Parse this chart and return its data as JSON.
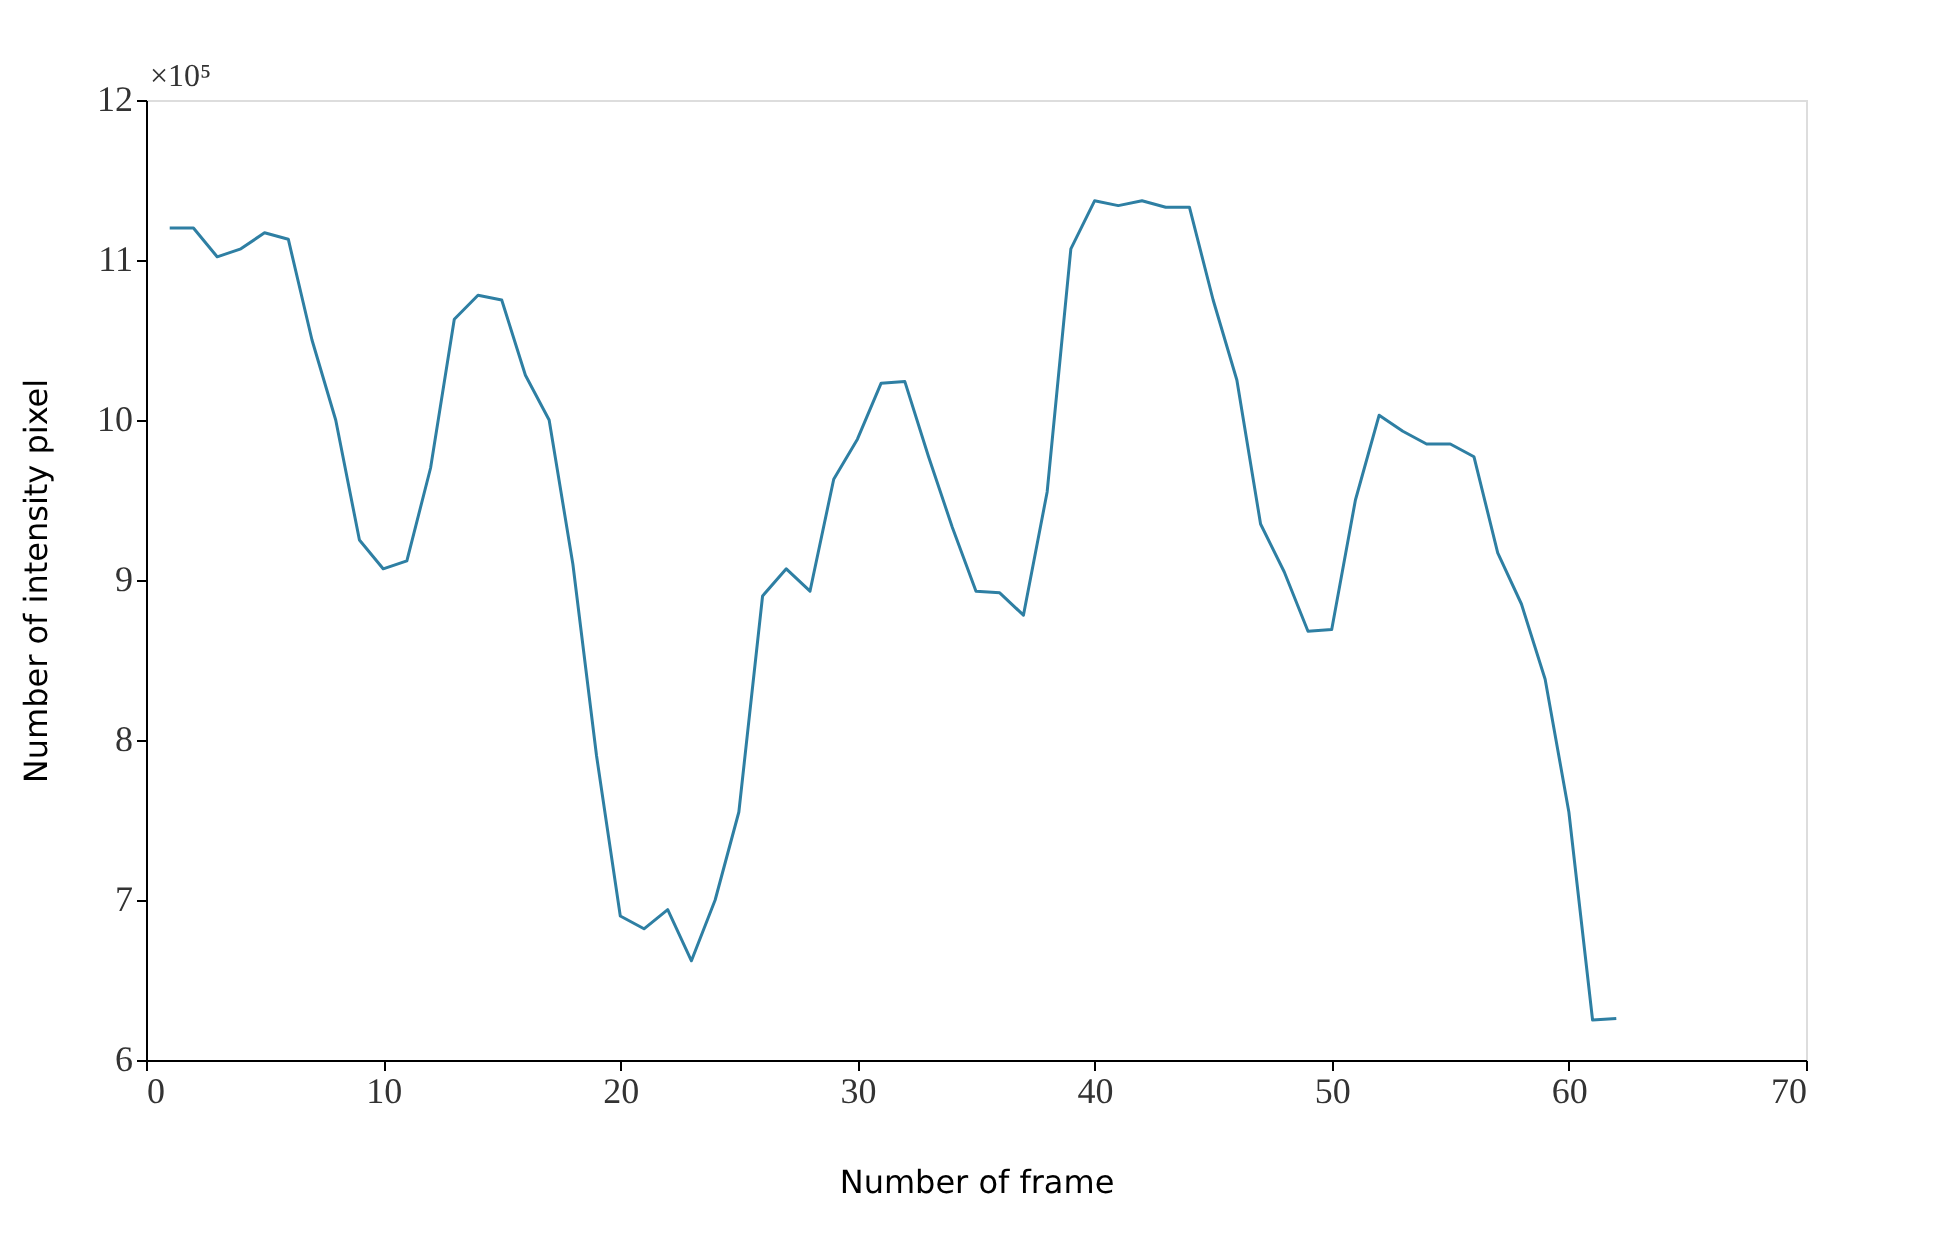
{
  "chart_data": {
    "type": "line",
    "xlabel": "Number of frame",
    "ylabel": "Number of intensity pixel",
    "annotations": [
      "×10⁵"
    ],
    "x": [
      1,
      2,
      3,
      4,
      5,
      6,
      7,
      8,
      9,
      10,
      11,
      12,
      13,
      14,
      15,
      16,
      17,
      18,
      19,
      20,
      21,
      22,
      23,
      24,
      25,
      26,
      27,
      28,
      29,
      30,
      31,
      32,
      33,
      34,
      35,
      36,
      37,
      38,
      39,
      40,
      41,
      42,
      43,
      44,
      45,
      46,
      47,
      48,
      49,
      50,
      51,
      52,
      53,
      54,
      55,
      56,
      57,
      58,
      59,
      60,
      61,
      62
    ],
    "series": [
      {
        "color": "#2e7fa3",
        "values": [
          11.2,
          11.2,
          11.02,
          11.07,
          11.17,
          11.13,
          10.5,
          10.0,
          9.25,
          9.07,
          9.12,
          9.7,
          10.63,
          10.78,
          10.75,
          10.28,
          10.0,
          9.1,
          7.9,
          6.9,
          6.82,
          6.94,
          6.62,
          7.0,
          7.55,
          8.9,
          9.07,
          8.93,
          9.63,
          9.88,
          10.23,
          10.24,
          9.77,
          9.33,
          8.93,
          8.92,
          8.78,
          9.55,
          11.07,
          11.37,
          11.34,
          11.37,
          11.33,
          11.33,
          10.75,
          10.25,
          9.35,
          9.05,
          8.68,
          8.69,
          9.5,
          10.03,
          9.93,
          9.85,
          9.85,
          9.77,
          9.17,
          8.85,
          8.38,
          7.55,
          6.25,
          6.26
        ]
      }
    ],
    "xlim": [
      0,
      70
    ],
    "xticks": [
      0,
      10,
      20,
      30,
      40,
      50,
      60,
      70
    ],
    "ylim": [
      6,
      12
    ],
    "yticks": [
      6,
      7,
      8,
      9,
      10,
      11,
      12
    ],
    "grid": false,
    "legend": false,
    "marker": "none",
    "line_style": "solid"
  }
}
